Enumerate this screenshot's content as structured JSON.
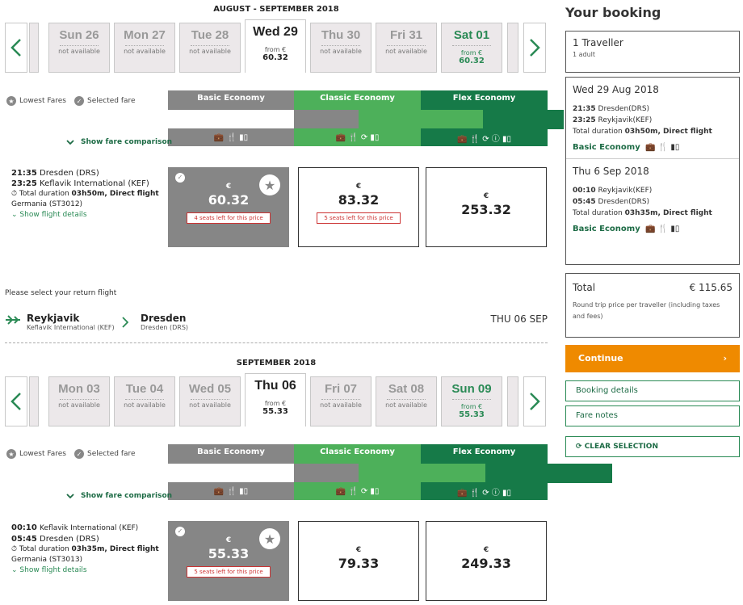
{
  "outbound": {
    "month": "AUGUST - SEPTEMBER 2018",
    "days": [
      {
        "name": "Sun 26",
        "status": "not available"
      },
      {
        "name": "Mon 27",
        "status": "not available"
      },
      {
        "name": "Tue 28",
        "status": "not available"
      },
      {
        "name": "Wed 29",
        "from": "from €",
        "price": "60.32",
        "selected": true
      },
      {
        "name": "Thu 30",
        "status": "not available"
      },
      {
        "name": "Fri 31",
        "status": "not available"
      },
      {
        "name": "Sat 01",
        "from": "from €",
        "price": "60.32"
      }
    ],
    "legend": {
      "lowest": "Lowest Fares",
      "selected": "Selected fare"
    },
    "fares": {
      "basic": "Basic Economy",
      "classic": "Classic Economy",
      "flex": "Flex Economy"
    },
    "show_comparison": "Show fare comparison",
    "flight": {
      "dep_time": "21:35",
      "dep_place": "Dresden (DRS)",
      "arr_time": "23:25",
      "arr_place": "Keflavik International (KEF)",
      "duration_label": "Total duration",
      "duration": "03h50m, Direct flight",
      "carrier": "Germania (ST3012)",
      "details": "Show flight details"
    },
    "prices": [
      {
        "currency": "€",
        "amount": "60.32",
        "seats": "4 seats left for this price"
      },
      {
        "currency": "€",
        "amount": "83.32",
        "seats": "5 seats left for this price"
      },
      {
        "currency": "€",
        "amount": "253.32"
      }
    ]
  },
  "return_prompt": "Please select your return flight",
  "route": {
    "from_city": "Reykjavik",
    "from_airport": "Keflavik International (KEF)",
    "to_city": "Dresden",
    "to_airport": "Dresden (DRS)",
    "date": "THU 06 SEP"
  },
  "inbound": {
    "month": "SEPTEMBER 2018",
    "days": [
      {
        "name": "Mon 03",
        "status": "not available"
      },
      {
        "name": "Tue 04",
        "status": "not available"
      },
      {
        "name": "Wed 05",
        "status": "not available"
      },
      {
        "name": "Thu 06",
        "from": "from €",
        "price": "55.33",
        "selected": true
      },
      {
        "name": "Fri 07",
        "status": "not available"
      },
      {
        "name": "Sat 08",
        "status": "not available"
      },
      {
        "name": "Sun 09",
        "from": "from €",
        "price": "55.33"
      }
    ],
    "legend": {
      "lowest": "Lowest Fares",
      "selected": "Selected fare"
    },
    "fares": {
      "basic": "Basic Economy",
      "classic": "Classic Economy",
      "flex": "Flex Economy"
    },
    "show_comparison": "Show fare comparison",
    "flight": {
      "dep_time": "00:10",
      "dep_place": "Keflavik International (KEF)",
      "arr_time": "05:45",
      "arr_place": "Dresden (DRS)",
      "duration_label": "Total duration",
      "duration": "03h35m, Direct flight",
      "carrier": "Germania (ST3013)",
      "details": "Show flight details"
    },
    "prices": [
      {
        "currency": "€",
        "amount": "55.33",
        "seats": "5 seats left for this price"
      },
      {
        "currency": "€",
        "amount": "79.33"
      },
      {
        "currency": "€",
        "amount": "249.33"
      }
    ]
  },
  "sidebar": {
    "title": "Your booking",
    "travellers": "1 Traveller",
    "travellers_sub": "1 adult",
    "out": {
      "date": "Wed 29 Aug 2018",
      "dep": "21:35",
      "dep_place": "Dresden(DRS)",
      "arr": "23:25",
      "arr_place": "Reykjavik(KEF)",
      "duration_label": "Total duration",
      "duration": "03h50m, Direct flight",
      "fare": "Basic Economy"
    },
    "ret": {
      "date": "Thu 6 Sep 2018",
      "dep": "00:10",
      "dep_place": "Reykjavik(KEF)",
      "arr": "05:45",
      "arr_place": "Dresden(DRS)",
      "duration_label": "Total duration",
      "duration": "03h35m, Direct flight",
      "fare": "Basic Economy"
    },
    "total_label": "Total",
    "total_value": "€ 115.65",
    "total_note": "Round trip price per traveller (including taxes and fees)",
    "continue": "Continue",
    "booking_details": "Booking details",
    "fare_notes": "Fare notes",
    "clear": "CLEAR SELECTION"
  },
  "colors": {
    "basic": "#868686",
    "classic": "#4db05a",
    "flex": "#167a48",
    "accent": "#ef8a00",
    "link": "#2a8a55"
  }
}
